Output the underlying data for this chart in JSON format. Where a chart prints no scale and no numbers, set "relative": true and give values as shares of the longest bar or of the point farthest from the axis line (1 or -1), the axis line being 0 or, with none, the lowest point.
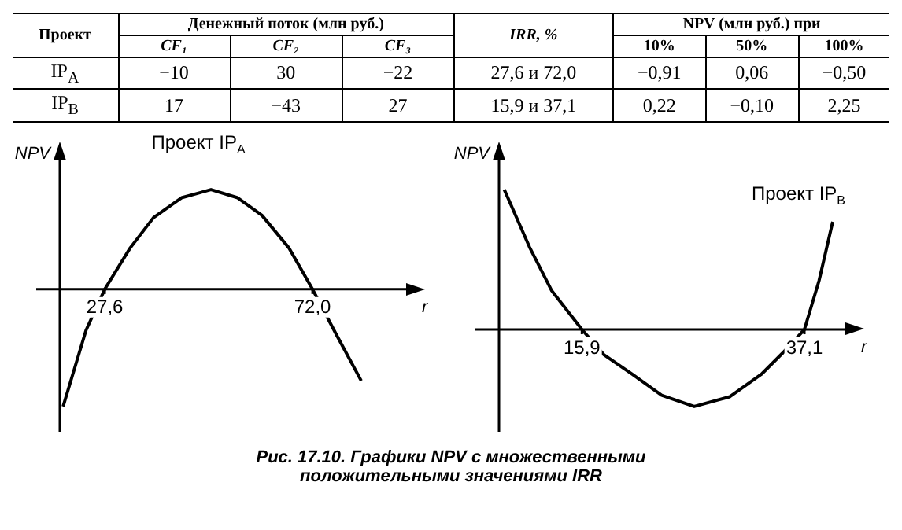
{
  "chart_data": [
    {
      "type": "other",
      "annotations": [
        "Проект",
        "Денежный поток (млн руб.)",
        "IRR, %",
        "NPV (млн руб.) при",
        "CF₁",
        "CF₂",
        "CF₃",
        "10%",
        "50%",
        "100%",
        "IP$_{A}$",
        "−10",
        "30",
        "−22",
        "27,6 и 72,0",
        "−0,91",
        "0,06",
        "−0,50",
        "IP$_{B}$",
        "17",
        "−43",
        "27",
        "15,9 и 37,1",
        "0,22",
        "−0,10",
        "2,25"
      ]
    },
    {
      "type": "line",
      "relative": true,
      "xlabel": "r",
      "ylabel": "NPV",
      "xlim": [
        18,
        92
      ],
      "xticks": [
        {
          "value": 27.6,
          "label": "27,6"
        },
        {
          "value": 72,
          "label": "72,0"
        }
      ],
      "series": [
        {
          "name": "Проект IP$_{A}$",
          "color": "#000000",
          "x": [
            18.7,
            23.6,
            27.6,
            33,
            38,
            44,
            50.3,
            56,
            61.2,
            67,
            72,
            77,
            82.4
          ],
          "values": [
            -1,
            -0.35,
            0,
            0.35,
            0.61,
            0.78,
            0.85,
            0.78,
            0.63,
            0.35,
            0,
            -0.38,
            -0.78
          ]
        }
      ]
    },
    {
      "type": "line",
      "relative": true,
      "xlabel": "r",
      "ylabel": "NPV",
      "xlim": [
        8,
        41
      ],
      "xticks": [
        {
          "value": 15.9,
          "label": "15,9"
        },
        {
          "value": 37.1,
          "label": "37,1"
        }
      ],
      "series": [
        {
          "name": "Проект IP$_{B}$",
          "color": "#000000",
          "x": [
            8.5,
            10.9,
            13,
            15.9,
            18,
            20.7,
            23.5,
            26.6,
            30,
            33,
            35,
            37.1,
            38.5,
            39.8
          ],
          "values": [
            1,
            0.59,
            0.28,
            0,
            -0.18,
            -0.32,
            -0.47,
            -0.55,
            -0.48,
            -0.32,
            -0.17,
            0,
            0.35,
            0.77
          ]
        }
      ]
    },
    {
      "type": "other",
      "annotations": [
        "Рис. 17.10. Графики NPV с множественными положительными значениями IRR"
      ]
    }
  ]
}
